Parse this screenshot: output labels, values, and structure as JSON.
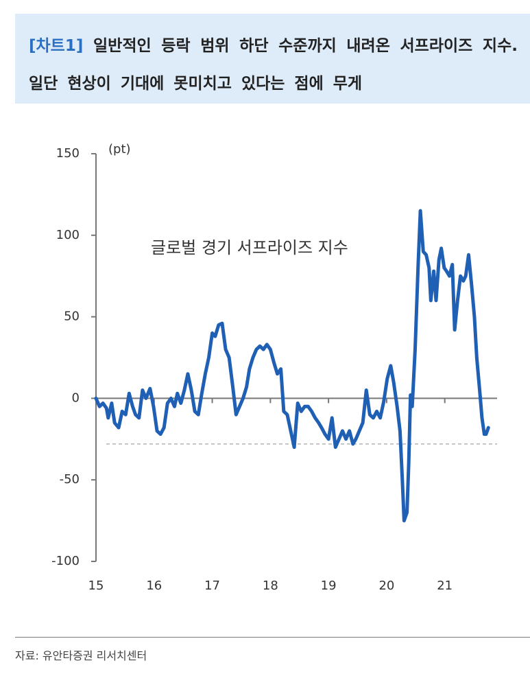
{
  "title_tag": "[차트1]",
  "title": "일반적인 등락 범위 하단 수준까지 내려온 서프라이즈 지수. 일단 현상이 기대에 못미치고 있다는 점에 무게",
  "source": "자료: 유안타증권 리서치센터",
  "chart_data": {
    "type": "line",
    "annotation": "글로벌 경기 서프라이즈 지수",
    "y_unit": "(pt)",
    "xlim": [
      15,
      21.9
    ],
    "xticks": [
      15,
      16,
      17,
      18,
      19,
      20,
      21
    ],
    "ylim": [
      -100,
      150
    ],
    "yticks": [
      150,
      100,
      50,
      0,
      -50,
      -100
    ],
    "reference_line": -28,
    "series": [
      {
        "color": "#1f5fb4",
        "x": [
          15.0,
          15.06,
          15.12,
          15.18,
          15.21,
          15.27,
          15.32,
          15.39,
          15.45,
          15.51,
          15.57,
          15.63,
          15.68,
          15.74,
          15.8,
          15.86,
          15.93,
          15.99,
          16.05,
          16.11,
          16.17,
          16.23,
          16.29,
          16.35,
          16.4,
          16.46,
          16.52,
          16.58,
          16.64,
          16.7,
          16.76,
          16.82,
          16.88,
          16.94,
          17.0,
          17.05,
          17.11,
          17.17,
          17.23,
          17.29,
          17.35,
          17.41,
          17.47,
          17.53,
          17.59,
          17.64,
          17.7,
          17.76,
          17.82,
          17.88,
          17.94,
          18.0,
          18.06,
          18.12,
          18.18,
          18.23,
          18.29,
          18.35,
          18.41,
          18.47,
          18.53,
          18.59,
          18.65,
          18.71,
          18.77,
          18.83,
          18.88,
          18.94,
          19.0,
          19.06,
          19.12,
          19.18,
          19.24,
          19.3,
          19.36,
          19.42,
          19.47,
          19.53,
          19.59,
          19.65,
          19.71,
          19.77,
          19.83,
          19.89,
          19.95,
          20.01,
          20.07,
          20.12,
          20.18,
          20.23,
          20.27,
          20.3,
          20.35,
          20.38,
          20.41,
          20.44,
          20.49,
          20.54,
          20.58,
          20.63,
          20.68,
          20.73,
          20.76,
          20.81,
          20.85,
          20.9,
          20.94,
          20.99,
          21.03,
          21.08,
          21.13,
          21.17,
          21.22,
          21.27,
          21.32,
          21.36,
          21.41,
          21.46,
          21.51,
          21.55,
          21.6,
          21.64,
          21.68,
          21.71,
          21.75
        ],
        "values": [
          0,
          -5,
          -3,
          -6,
          -12,
          -3,
          -15,
          -18,
          -8,
          -10,
          3,
          -5,
          -10,
          -12,
          5,
          0,
          6,
          -5,
          -20,
          -22,
          -18,
          -3,
          0,
          -5,
          3,
          -3,
          5,
          15,
          5,
          -8,
          -10,
          3,
          15,
          25,
          40,
          38,
          45,
          46,
          30,
          25,
          8,
          -10,
          -5,
          0,
          7,
          18,
          25,
          30,
          32,
          30,
          33,
          30,
          22,
          15,
          18,
          -8,
          -10,
          -20,
          -30,
          -3,
          -8,
          -5,
          -5,
          -8,
          -12,
          -15,
          -18,
          -22,
          -25,
          -12,
          -30,
          -25,
          -20,
          -25,
          -20,
          -28,
          -25,
          -20,
          -15,
          5,
          -10,
          -12,
          -8,
          -12,
          -2,
          12,
          20,
          10,
          -5,
          -20,
          -50,
          -75,
          -70,
          -40,
          2,
          -5,
          30,
          80,
          115,
          90,
          88,
          80,
          60,
          78,
          60,
          85,
          92,
          80,
          78,
          75,
          82,
          42,
          60,
          75,
          72,
          75,
          88,
          70,
          50,
          25,
          5,
          -12,
          -22,
          -22,
          -18
        ]
      }
    ]
  }
}
